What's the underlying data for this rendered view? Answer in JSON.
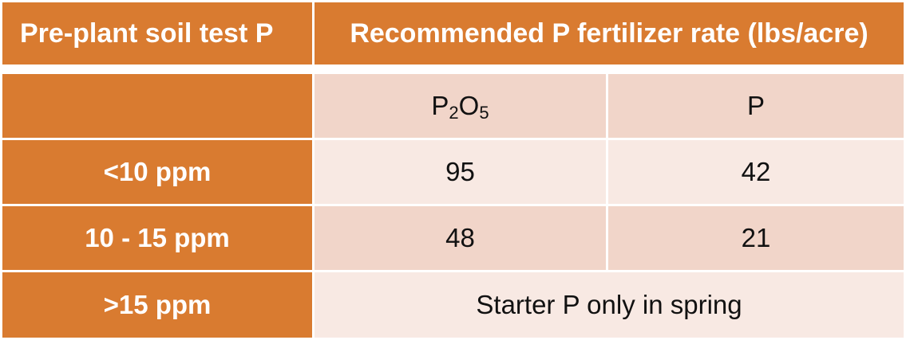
{
  "table": {
    "header": {
      "col1": "Pre-plant soil test P",
      "col2": "Recommended P fertilizer rate (lbs/acre)"
    },
    "subheader": {
      "col1": "",
      "p2o5": {
        "base1": "P",
        "sub1": "2",
        "base2": "O",
        "sub2": "5"
      },
      "p": "P"
    },
    "rows": [
      {
        "label": "<10 ppm",
        "p2o5": "95",
        "p": "42"
      },
      {
        "label": "10 - 15 ppm",
        "p2o5": "48",
        "p": "21"
      },
      {
        "label": ">15 ppm",
        "merged": "Starter P only in spring"
      }
    ],
    "colors": {
      "header_bg": "#d97b30",
      "header_text": "#ffffff",
      "cell_light": "#f8e9e3",
      "cell_mid": "#f1d5c9"
    }
  }
}
